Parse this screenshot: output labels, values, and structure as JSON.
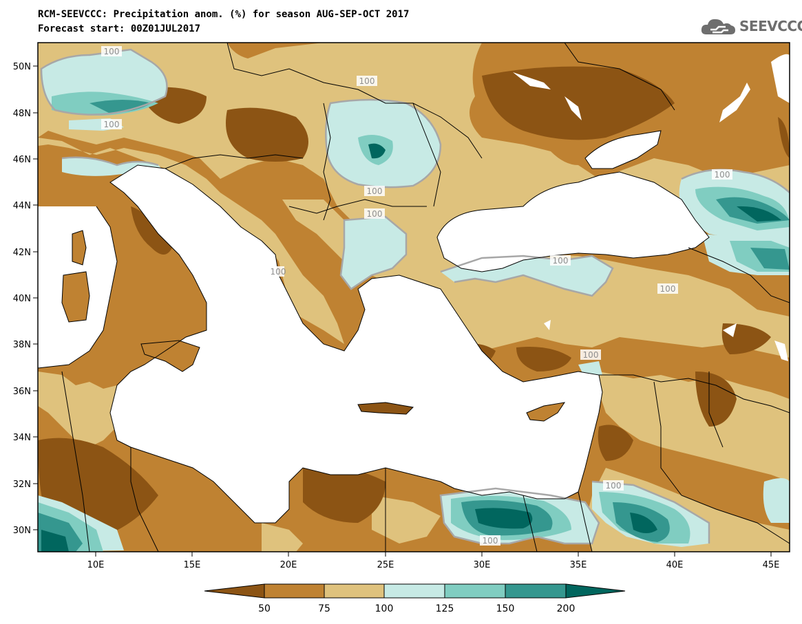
{
  "title_line1": "RCM-SEEVCCC: Precipitation anom. (%) for season AUG-SEP-OCT 2017",
  "title_line2": "Forecast start: 00Z01JUL2017",
  "logo_text": "SEEVCCC",
  "map": {
    "lon_range": [
      7,
      46
    ],
    "lat_range": [
      29,
      51
    ],
    "lat_ticks": [
      "50N",
      "48N",
      "46N",
      "44N",
      "42N",
      "40N",
      "38N",
      "36N",
      "34N",
      "32N",
      "30N"
    ],
    "lon_ticks": [
      "10E",
      "15E",
      "20E",
      "25E",
      "30E",
      "35E",
      "40E",
      "45E"
    ],
    "contour_labels": [
      "100",
      "100",
      "100",
      "100",
      "100",
      "100",
      "100",
      "100",
      "100",
      "100",
      "100",
      "100"
    ]
  },
  "colorbar": {
    "levels": [
      "50",
      "75",
      "100",
      "125",
      "150",
      "200"
    ],
    "colors": [
      "#8c5414",
      "#bf8232",
      "#dfc27d",
      "#c7eae5",
      "#80cdc1",
      "#35978f",
      "#01665e"
    ]
  }
}
